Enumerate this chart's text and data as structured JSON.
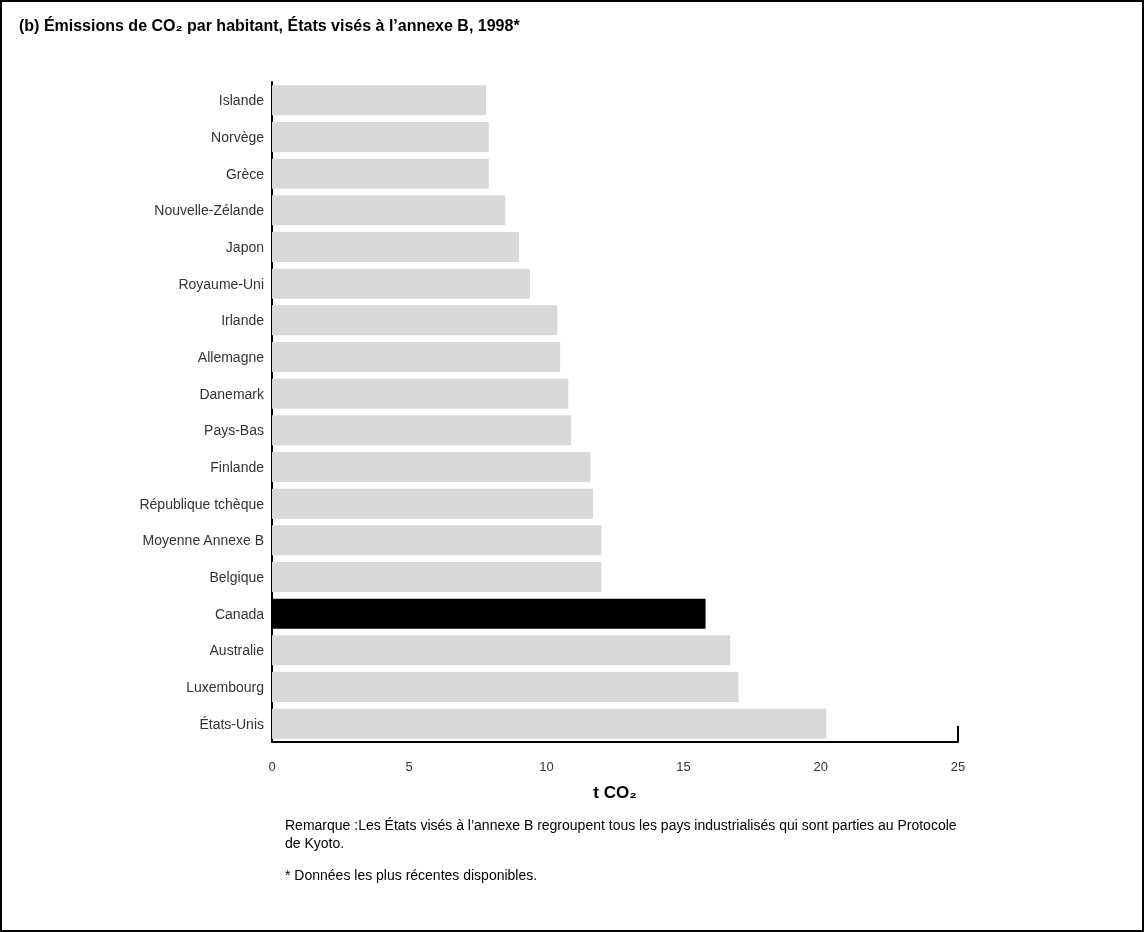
{
  "chart_data": {
    "type": "bar",
    "orientation": "horizontal",
    "title": "(b) Émissions de CO₂ par habitant, États visés à l’annexe B, 1998*",
    "xlabel": "t CO₂",
    "categories": [
      "Islande",
      "Norvège",
      "Grèce",
      "Nouvelle-Zélande",
      "Japon",
      "Royaume-Uni",
      "Irlande",
      "Allemagne",
      "Danemark",
      "Pays-Bas",
      "Finlande",
      "République tchèque",
      "Moyenne Annexe B",
      "Belgique",
      "Canada",
      "Australie",
      "Luxembourg",
      "États-Unis"
    ],
    "values": [
      7.8,
      7.9,
      7.9,
      8.5,
      9.0,
      9.4,
      10.4,
      10.5,
      10.8,
      10.9,
      11.6,
      11.7,
      12.0,
      12.0,
      15.8,
      16.7,
      17.0,
      20.2
    ],
    "colors": [
      "#d8d8d8",
      "#d8d8d8",
      "#d8d8d8",
      "#d8d8d8",
      "#d8d8d8",
      "#d8d8d8",
      "#d8d8d8",
      "#d8d8d8",
      "#d8d8d8",
      "#d8d8d8",
      "#d8d8d8",
      "#d8d8d8",
      "#d8d8d8",
      "#d8d8d8",
      "#000000",
      "#d8d8d8",
      "#d8d8d8",
      "#d8d8d8"
    ],
    "xlim": [
      0,
      25
    ],
    "xticks": [
      0,
      5,
      10,
      15,
      20,
      25
    ],
    "grid": false,
    "annotations": [
      "Remarque :Les États visés à l’annexe B regroupent tous les pays industrialisés qui sont parties au Protocole de Kyoto.",
      "* Données les plus récentes disponibles."
    ]
  }
}
